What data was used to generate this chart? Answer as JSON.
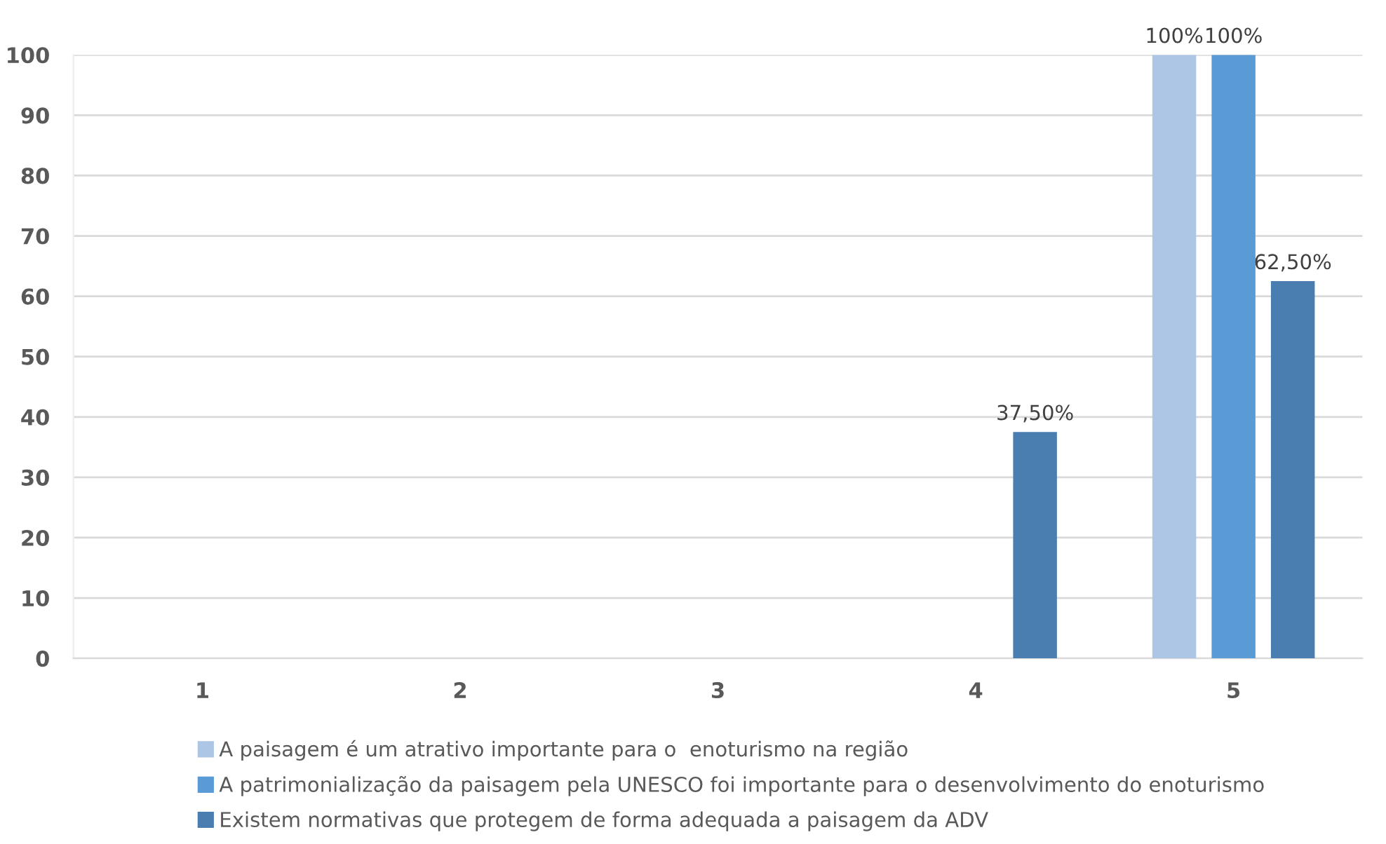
{
  "chart_data": {
    "type": "bar",
    "categories": [
      "1",
      "2",
      "3",
      "4",
      "5"
    ],
    "series": [
      {
        "name": "A paisagem é um atrativo importante para o  enoturismo na região",
        "color": "#adc6e5",
        "values": [
          0,
          0,
          0,
          0,
          100
        ],
        "value_labels": [
          null,
          null,
          null,
          null,
          "100%"
        ]
      },
      {
        "name": "A patrimonialização da paisagem pela UNESCO foi importante para o desenvolvimento do enoturismo",
        "color": "#5b9bd5",
        "values": [
          0,
          0,
          0,
          0,
          100
        ],
        "value_labels": [
          null,
          null,
          null,
          null,
          "100%"
        ]
      },
      {
        "name": "Existem normativas que protegem de forma adequada a paisagem da ADV",
        "color": "#4a7eb0",
        "values": [
          0,
          0,
          0,
          37.5,
          62.5
        ],
        "value_labels": [
          null,
          null,
          null,
          "37,50%",
          "62,50%"
        ]
      }
    ],
    "ylim": [
      0,
      100
    ],
    "yticks": [
      0,
      10,
      20,
      30,
      40,
      50,
      60,
      70,
      80,
      90,
      100
    ],
    "grid": "y",
    "legend": "bottom"
  }
}
